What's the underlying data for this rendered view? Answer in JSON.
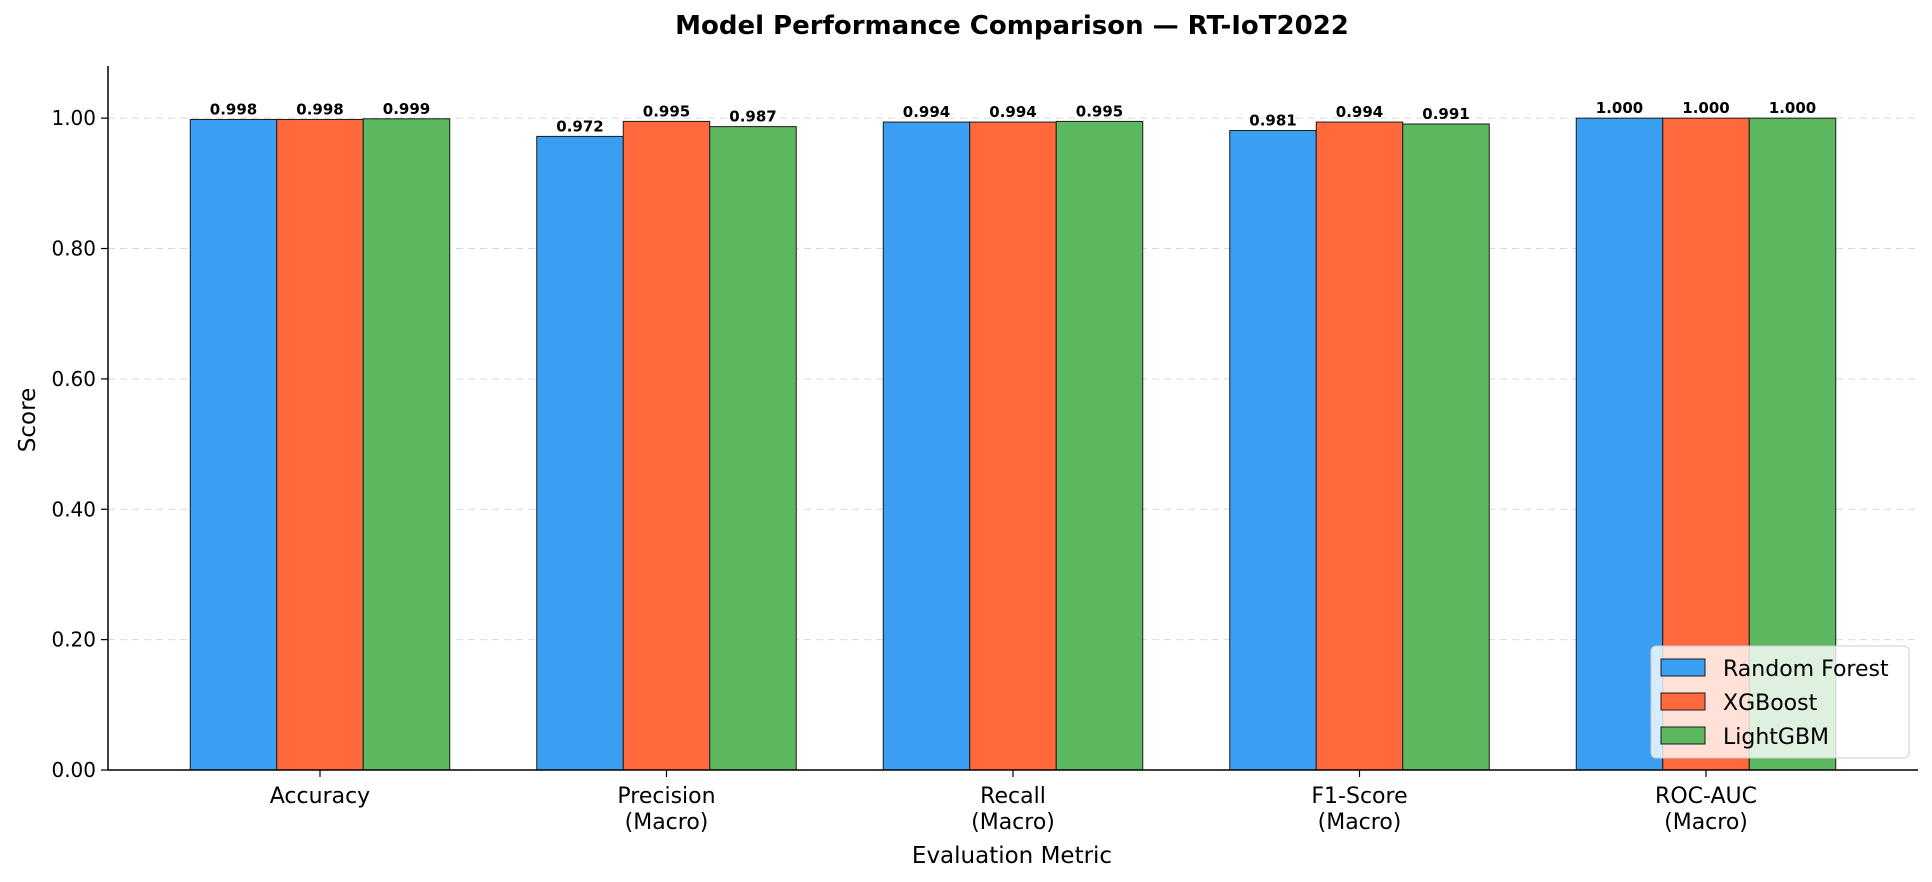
{
  "chart_data": {
    "type": "bar",
    "title": "Model Performance Comparison — RT-IoT2022",
    "xlabel": "Evaluation Metric",
    "ylabel": "Score",
    "ylim": [
      0,
      1.08
    ],
    "yticks": [
      0.0,
      0.2,
      0.4,
      0.6,
      0.8,
      1.0
    ],
    "ytick_labels": [
      "0.00",
      "0.20",
      "0.40",
      "0.60",
      "0.80",
      "1.00"
    ],
    "grid": "y-dashed",
    "legend_position": "bottom-right",
    "categories": [
      [
        "Accuracy"
      ],
      [
        "Precision",
        "(Macro)"
      ],
      [
        "Recall",
        "(Macro)"
      ],
      [
        "F1-Score",
        "(Macro)"
      ],
      [
        "ROC-AUC",
        "(Macro)"
      ]
    ],
    "series": [
      {
        "name": "Random Forest",
        "color": "#3a9ff2",
        "values": [
          0.998,
          0.972,
          0.994,
          0.981,
          1.0
        ],
        "labels": [
          "0.998",
          "0.972",
          "0.994",
          "0.981",
          "1.000"
        ]
      },
      {
        "name": "XGBoost",
        "color": "#ff693b",
        "values": [
          0.998,
          0.995,
          0.994,
          0.994,
          1.0
        ],
        "labels": [
          "0.998",
          "0.995",
          "0.994",
          "0.994",
          "1.000"
        ]
      },
      {
        "name": "LightGBM",
        "color": "#5cb85f",
        "values": [
          0.999,
          0.987,
          0.995,
          0.991,
          1.0
        ],
        "labels": [
          "0.999",
          "0.987",
          "0.995",
          "0.991",
          "1.000"
        ]
      }
    ]
  }
}
